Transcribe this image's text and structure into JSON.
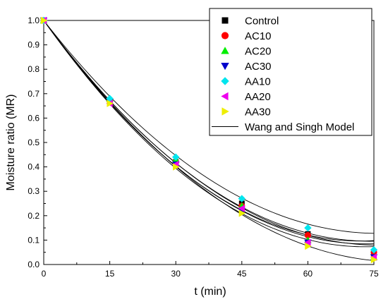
{
  "chart_data": {
    "type": "scatter",
    "xlabel": "t (min)",
    "ylabel": "Moisture ratio (MR)",
    "xlim": [
      0,
      75
    ],
    "ylim": [
      0,
      1.0
    ],
    "xticks": [
      0,
      15,
      30,
      45,
      60,
      75
    ],
    "yticks": [
      0.0,
      0.1,
      0.2,
      0.3,
      0.4,
      0.5,
      0.6,
      0.7,
      0.8,
      0.9,
      1.0
    ],
    "xtick_labels": [
      "0",
      "15",
      "30",
      "45",
      "60",
      "75"
    ],
    "ytick_labels": [
      "0.0",
      "0.1",
      "0.2",
      "0.3",
      "0.4",
      "0.5",
      "0.6",
      "0.7",
      "0.8",
      "0.9",
      "1.0"
    ],
    "grid": false,
    "legend_position": "top-right",
    "x": [
      0,
      15,
      30,
      45,
      60,
      75
    ],
    "series": [
      {
        "name": "Control",
        "marker": "square",
        "color": "#000000",
        "values": [
          1.0,
          0.67,
          0.42,
          0.25,
          0.125,
          0.045
        ]
      },
      {
        "name": "AC10",
        "marker": "circle",
        "color": "#ff0000",
        "values": [
          1.0,
          0.67,
          0.42,
          0.24,
          0.12,
          0.05
        ]
      },
      {
        "name": "AC20",
        "marker": "triangle-up",
        "color": "#00ee00",
        "values": [
          1.0,
          0.68,
          0.43,
          0.24,
          0.1,
          0.03
        ]
      },
      {
        "name": "AC30",
        "marker": "triangle-down",
        "color": "#0000cc",
        "values": [
          1.0,
          0.67,
          0.41,
          0.22,
          0.09,
          0.03
        ]
      },
      {
        "name": "AA10",
        "marker": "diamond",
        "color": "#00e5ee",
        "values": [
          1.0,
          0.68,
          0.44,
          0.27,
          0.15,
          0.06
        ]
      },
      {
        "name": "AA20",
        "marker": "triangle-left",
        "color": "#ee00ee",
        "values": [
          1.0,
          0.66,
          0.41,
          0.23,
          0.09,
          0.03
        ]
      },
      {
        "name": "AA30",
        "marker": "triangle-right",
        "color": "#eeee00",
        "values": [
          1.0,
          0.66,
          0.4,
          0.21,
          0.075,
          0.02
        ]
      }
    ],
    "model_curves": {
      "name": "Wang and Singh Model",
      "color": "#000000",
      "curves": [
        {
          "a": -0.02439,
          "b": 0.0001644
        },
        {
          "a": -0.02427,
          "b": 0.00016
        },
        {
          "a": -0.02452,
          "b": 0.000152
        },
        {
          "a": -0.02503,
          "b": 0.0001711
        },
        {
          "a": -0.023,
          "b": 0.0001516
        },
        {
          "a": -0.02516,
          "b": 0.0001751
        },
        {
          "a": -0.02542,
          "b": 0.0001742
        }
      ]
    }
  }
}
